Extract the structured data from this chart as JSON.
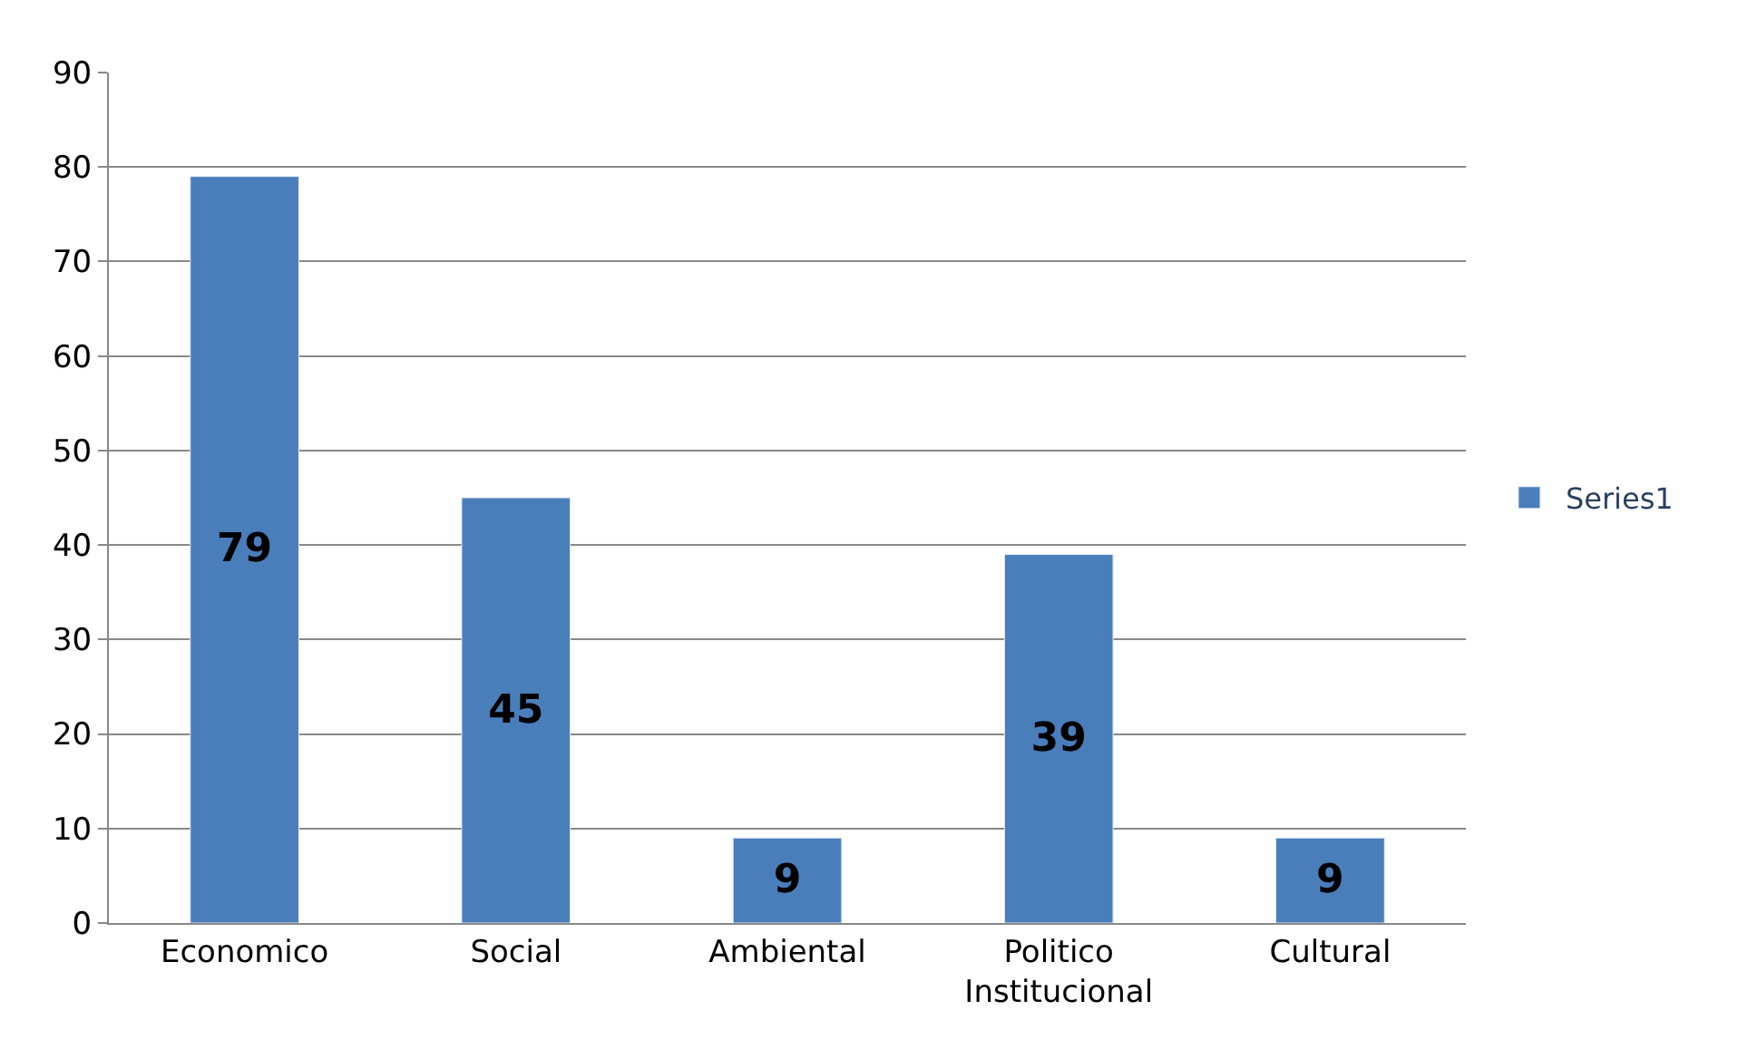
{
  "chart_data": {
    "type": "bar",
    "categories": [
      "Economico",
      "Social",
      "Ambiental",
      "Politico\nInstitucional",
      "Cultural"
    ],
    "series": [
      {
        "name": "Series1",
        "color": "#4a7ebb",
        "values": [
          79,
          45,
          9,
          39,
          9
        ]
      }
    ],
    "ylim": [
      0,
      90
    ],
    "yticks": [
      0,
      10,
      20,
      30,
      40,
      50,
      60,
      70,
      80,
      90
    ],
    "grid": "y",
    "legend": "right",
    "data_labels": true
  }
}
